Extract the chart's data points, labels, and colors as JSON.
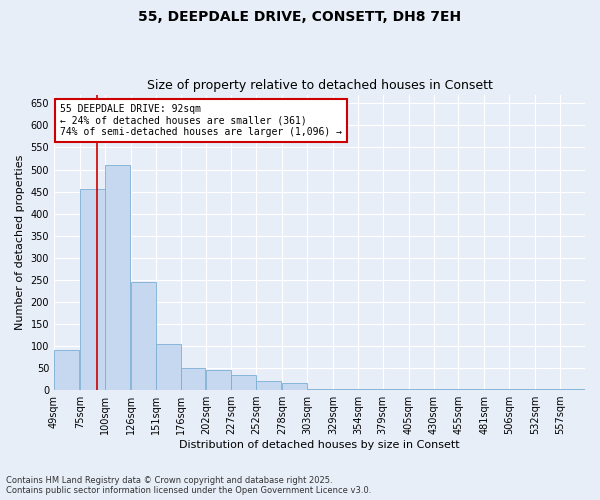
{
  "title": "55, DEEPDALE DRIVE, CONSETT, DH8 7EH",
  "subtitle": "Size of property relative to detached houses in Consett",
  "xlabel": "Distribution of detached houses by size in Consett",
  "ylabel": "Number of detached properties",
  "footnote1": "Contains HM Land Registry data © Crown copyright and database right 2025.",
  "footnote2": "Contains public sector information licensed under the Open Government Licence v3.0.",
  "annotation_line1": "55 DEEPDALE DRIVE: 92sqm",
  "annotation_line2": "← 24% of detached houses are smaller (361)",
  "annotation_line3": "74% of semi-detached houses are larger (1,096) →",
  "property_size_bin": 1,
  "bar_color": "#c5d8ef",
  "bar_edge_color": "#7bafd4",
  "redline_color": "#cc0000",
  "annotation_box_color": "#cc0000",
  "background_color": "#e8eef8",
  "plot_bg_color": "#e8eef8",
  "grid_color": "#ffffff",
  "categories": [
    "49sqm",
    "75sqm",
    "100sqm",
    "126sqm",
    "151sqm",
    "176sqm",
    "202sqm",
    "227sqm",
    "252sqm",
    "278sqm",
    "303sqm",
    "329sqm",
    "354sqm",
    "379sqm",
    "405sqm",
    "430sqm",
    "455sqm",
    "481sqm",
    "506sqm",
    "532sqm",
    "557sqm"
  ],
  "bin_starts": [
    49,
    75,
    100,
    126,
    151,
    176,
    202,
    227,
    252,
    278,
    303,
    329,
    354,
    379,
    405,
    430,
    455,
    481,
    506,
    532,
    557
  ],
  "bin_width": 25,
  "values": [
    90,
    455,
    510,
    245,
    105,
    50,
    45,
    35,
    20,
    15,
    3,
    3,
    3,
    3,
    3,
    3,
    3,
    3,
    3,
    3,
    3
  ],
  "red_line_x": 92,
  "ylim": [
    0,
    670
  ],
  "yticks": [
    0,
    50,
    100,
    150,
    200,
    250,
    300,
    350,
    400,
    450,
    500,
    550,
    600,
    650
  ],
  "title_fontsize": 10,
  "subtitle_fontsize": 9,
  "axis_label_fontsize": 8,
  "tick_fontsize": 7,
  "annotation_fontsize": 7,
  "footnote_fontsize": 6
}
